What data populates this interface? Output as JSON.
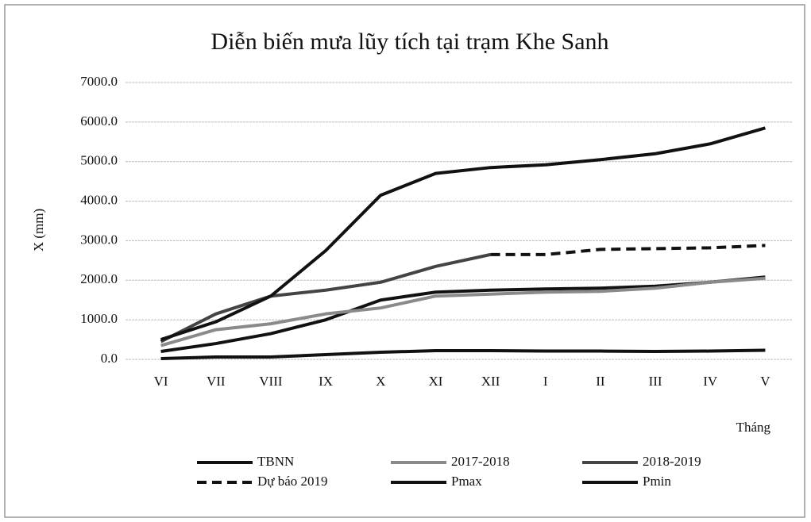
{
  "chart_data": {
    "type": "line",
    "title": "Diễn biến mưa lũy tích tại trạm Khe Sanh",
    "x_label": "Tháng",
    "y_label": "X (mm)",
    "categories": [
      "VI",
      "VII",
      "VIII",
      "IX",
      "X",
      "XI",
      "XII",
      "I",
      "II",
      "III",
      "IV",
      "V"
    ],
    "series": [
      {
        "name": "TBNN",
        "color": "#111111",
        "dashed": false,
        "values": [
          200,
          400,
          650,
          1000,
          1500,
          1700,
          1750,
          1780,
          1800,
          1850,
          1950,
          2080
        ]
      },
      {
        "name": "2017-2018",
        "color": "#8a8a8a",
        "dashed": false,
        "values": [
          350,
          750,
          900,
          1150,
          1300,
          1600,
          1650,
          1700,
          1720,
          1800,
          1950,
          2050
        ]
      },
      {
        "name": "2018-2019",
        "color": "#444444",
        "dashed": false,
        "values": [
          450,
          1150,
          1600,
          1750,
          1950,
          2350,
          2650,
          null,
          null,
          null,
          null,
          null
        ]
      },
      {
        "name": "Dự báo 2019",
        "color": "#111111",
        "dashed": true,
        "values": [
          null,
          null,
          null,
          null,
          null,
          null,
          2650,
          2650,
          2780,
          2800,
          2820,
          2880
        ]
      },
      {
        "name": "Pmax",
        "color": "#111111",
        "dashed": false,
        "values": [
          500,
          950,
          1600,
          2750,
          4150,
          4700,
          4850,
          4920,
          5050,
          5200,
          5450,
          5850
        ]
      },
      {
        "name": "Pmin",
        "color": "#111111",
        "dashed": false,
        "values": [
          20,
          60,
          60,
          120,
          180,
          220,
          220,
          210,
          210,
          200,
          210,
          230
        ]
      }
    ],
    "ylim": [
      0,
      7000
    ],
    "yticks": [
      {
        "value": 0,
        "label": "0.0"
      },
      {
        "value": 1000,
        "label": "1000.0"
      },
      {
        "value": 2000,
        "label": "2000.0"
      },
      {
        "value": 3000,
        "label": "3000.0"
      },
      {
        "value": 4000,
        "label": "4000.0"
      },
      {
        "value": 5000,
        "label": "5000.0"
      },
      {
        "value": 6000,
        "label": "6000.0"
      },
      {
        "value": 7000,
        "label": "7000.0"
      }
    ],
    "grid": true,
    "legend": "bottom"
  }
}
